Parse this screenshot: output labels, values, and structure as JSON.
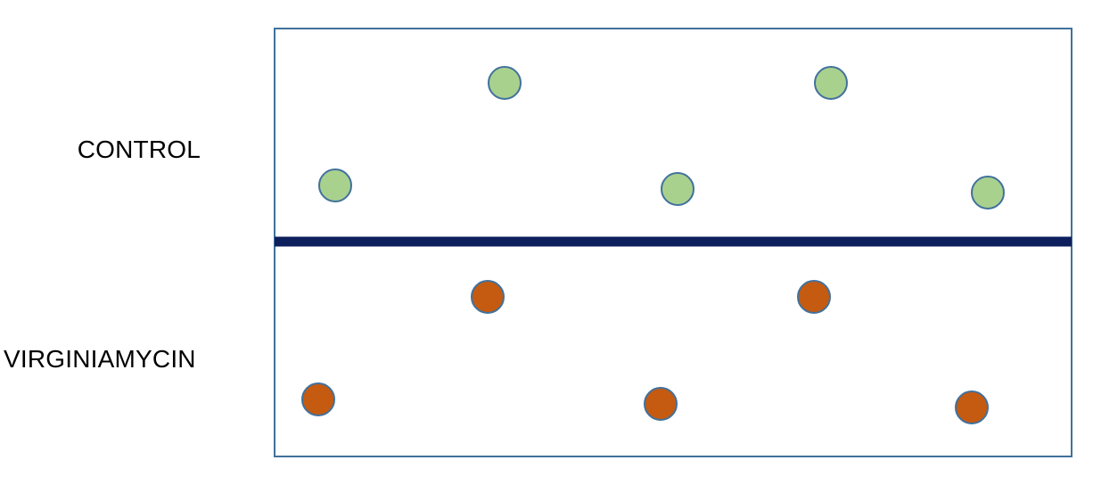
{
  "groups": [
    {
      "label": "CONTROL",
      "fill": "#a9d18e",
      "stroke": "#41719c",
      "dot_count": 5
    },
    {
      "label": "VIRGINIAMYCIN",
      "fill": "#c55a11",
      "stroke": "#41719c",
      "dot_count": 5
    }
  ],
  "colors": {
    "frame_border": "#41719c",
    "divider": "#0d1f5c"
  }
}
